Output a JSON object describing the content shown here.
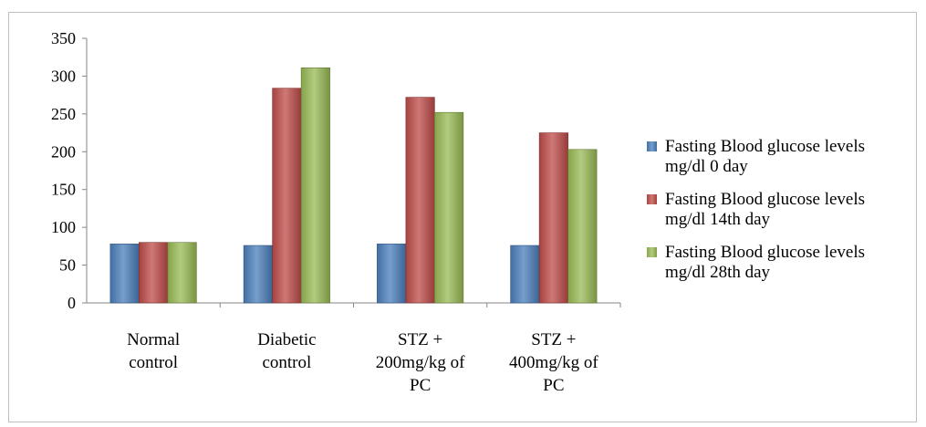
{
  "chart_data": {
    "type": "bar",
    "title": "",
    "xlabel": "",
    "ylabel": "",
    "ylim": [
      0,
      350
    ],
    "yticks": [
      "0",
      "50",
      "100",
      "150",
      "200",
      "250",
      "300",
      "350"
    ],
    "grid": false,
    "legend_position": "right",
    "categories": [
      [
        "Normal",
        "control"
      ],
      [
        "Diabetic",
        "control"
      ],
      [
        "STZ +",
        "200mg/kg of",
        "PC"
      ],
      [
        "STZ +",
        "400mg/kg of",
        "PC"
      ]
    ],
    "series": [
      {
        "name": "Fasting Blood glucose levels mg/dl 0 day",
        "legend_lines": [
          "Fasting Blood glucose levels",
          "mg/dl 0 day"
        ],
        "color": "#4a7ebb",
        "values": [
          78,
          76,
          78,
          76
        ]
      },
      {
        "name": "Fasting Blood glucose levels mg/dl 14th day",
        "legend_lines": [
          "Fasting Blood glucose levels",
          "mg/dl 14th day"
        ],
        "color": "#be4b48",
        "values": [
          80,
          284,
          272,
          225
        ]
      },
      {
        "name": "Fasting Blood glucose levels mg/dl 28th day",
        "legend_lines": [
          "Fasting Blood glucose levels",
          "mg/dl 28th day"
        ],
        "color": "#98b954",
        "values": [
          80,
          311,
          252,
          203
        ]
      }
    ]
  }
}
